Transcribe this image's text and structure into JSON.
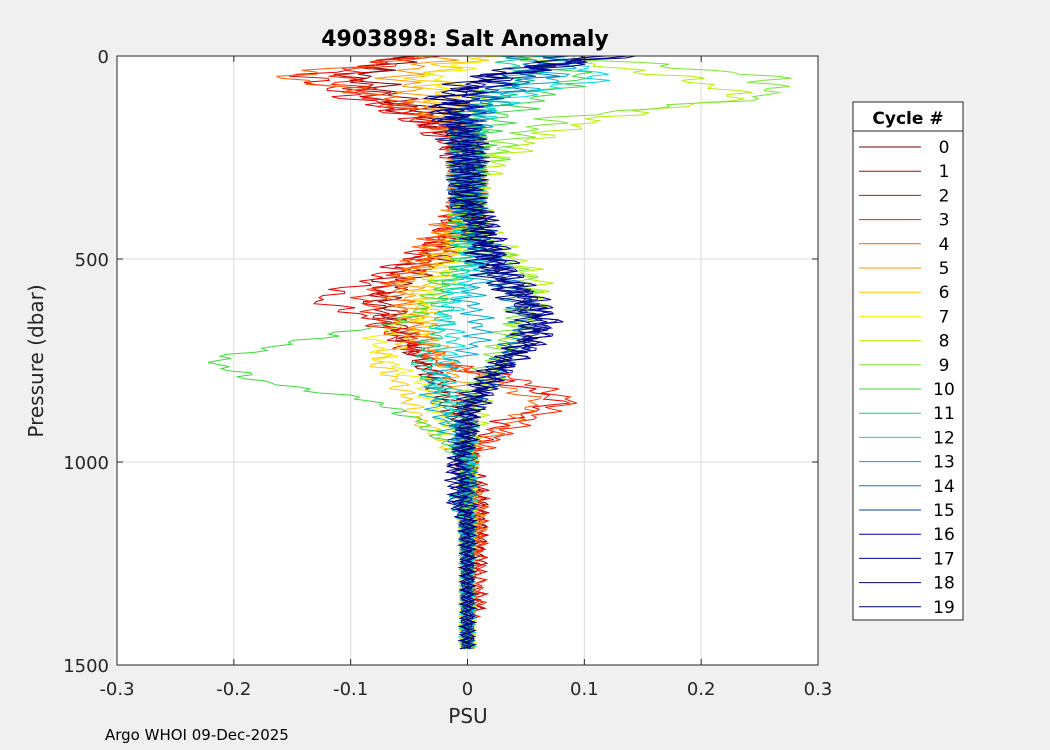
{
  "chart_data": {
    "type": "line",
    "title": "4903898: Salt Anomaly",
    "xlabel": "PSU",
    "ylabel": "Pressure (dbar)",
    "xlim": [
      -0.3,
      0.3
    ],
    "ylim": [
      0,
      1500
    ],
    "y_reversed": true,
    "grid": true,
    "xticks": [
      -0.3,
      -0.2,
      -0.1,
      0,
      0.1,
      0.2,
      0.3
    ],
    "xtick_labels": [
      "-0.3",
      "-0.2",
      "-0.1",
      "0",
      "0.1",
      "0.2",
      "0.3"
    ],
    "yticks": [
      0,
      500,
      1000,
      1500
    ],
    "ytick_labels": [
      "0",
      "500",
      "1000",
      "1500"
    ],
    "legend_title": "Cycle #",
    "legend_position": "outside-right",
    "pressure_levels": [
      0,
      50,
      100,
      150,
      200,
      250,
      300,
      350,
      400,
      450,
      500,
      550,
      600,
      650,
      700,
      750,
      800,
      850,
      900,
      950,
      1000,
      1050,
      1100,
      1150,
      1200,
      1250,
      1300,
      1350,
      1400,
      1450
    ],
    "series": [
      {
        "name": "0",
        "color": "#800000",
        "values": [
          -0.05,
          -0.09,
          -0.06,
          -0.03,
          -0.01,
          0.0,
          0.0,
          0.0,
          0.0,
          -0.01,
          -0.02,
          -0.05,
          -0.07,
          -0.06,
          -0.05,
          -0.04,
          -0.03,
          -0.02,
          -0.01,
          0.0,
          0.0,
          0.0,
          0.01,
          0.01,
          0.01,
          0.01,
          0.0,
          0.0,
          0.0,
          0.0
        ]
      },
      {
        "name": "1",
        "color": "#b40000",
        "values": [
          -0.06,
          -0.1,
          -0.08,
          -0.04,
          -0.01,
          0.0,
          0.0,
          0.0,
          -0.01,
          -0.02,
          -0.04,
          -0.07,
          -0.08,
          -0.07,
          -0.05,
          -0.04,
          -0.02,
          -0.01,
          0.0,
          0.0,
          0.0,
          0.01,
          0.01,
          0.01,
          0.01,
          0.0,
          0.0,
          0.01,
          0.0,
          0.0
        ]
      },
      {
        "name": "2",
        "color": "#e60000",
        "values": [
          -0.04,
          -0.14,
          -0.1,
          -0.05,
          -0.02,
          -0.01,
          0.0,
          0.0,
          -0.01,
          -0.02,
          -0.05,
          -0.08,
          -0.13,
          -0.08,
          -0.06,
          -0.04,
          0.03,
          0.08,
          0.03,
          0.01,
          0.0,
          0.01,
          0.01,
          0.01,
          0.01,
          0.01,
          0.01,
          0.01,
          0.0,
          0.0
        ]
      },
      {
        "name": "3",
        "color": "#ff1e00",
        "values": [
          -0.05,
          -0.11,
          -0.08,
          -0.04,
          0.0,
          0.0,
          0.0,
          0.0,
          -0.01,
          -0.02,
          -0.03,
          -0.06,
          -0.09,
          -0.07,
          -0.05,
          -0.03,
          0.05,
          0.09,
          0.05,
          0.02,
          0.0,
          0.0,
          0.01,
          0.01,
          0.01,
          0.01,
          0.01,
          0.01,
          0.0,
          0.0
        ]
      },
      {
        "name": "4",
        "color": "#ff5a00",
        "values": [
          -0.03,
          -0.16,
          -0.07,
          -0.03,
          0.0,
          0.0,
          0.0,
          0.0,
          -0.01,
          -0.03,
          -0.04,
          -0.06,
          -0.06,
          -0.05,
          -0.04,
          -0.02,
          0.02,
          0.06,
          0.04,
          0.01,
          0.0,
          0.0,
          0.01,
          0.01,
          0.01,
          0.0,
          0.0,
          0.0,
          0.0,
          0.0
        ]
      },
      {
        "name": "5",
        "color": "#ff9600",
        "values": [
          -0.02,
          -0.06,
          -0.04,
          -0.02,
          0.0,
          0.0,
          0.0,
          0.0,
          -0.01,
          -0.02,
          -0.03,
          -0.05,
          -0.05,
          -0.04,
          -0.03,
          -0.02,
          -0.01,
          0.0,
          0.0,
          0.0,
          0.0,
          0.0,
          0.0,
          0.01,
          0.0,
          0.0,
          0.0,
          0.0,
          0.0,
          0.0
        ]
      },
      {
        "name": "6",
        "color": "#ffc800",
        "values": [
          0.01,
          -0.04,
          -0.02,
          -0.01,
          0.0,
          0.0,
          0.0,
          0.0,
          0.0,
          -0.01,
          -0.02,
          -0.03,
          -0.04,
          -0.03,
          -0.05,
          -0.08,
          -0.06,
          -0.05,
          -0.04,
          -0.02,
          0.0,
          0.0,
          0.0,
          0.0,
          0.0,
          0.0,
          0.0,
          0.0,
          0.0,
          0.0
        ]
      },
      {
        "name": "7",
        "color": "#f0f000",
        "values": [
          0.02,
          -0.03,
          0.01,
          0.0,
          0.0,
          0.0,
          0.0,
          0.0,
          0.0,
          0.0,
          -0.01,
          -0.02,
          -0.03,
          -0.05,
          -0.08,
          -0.07,
          -0.04,
          -0.03,
          -0.02,
          -0.01,
          0.0,
          0.0,
          0.0,
          0.0,
          0.0,
          0.0,
          0.0,
          0.0,
          0.0,
          0.0
        ]
      },
      {
        "name": "8",
        "color": "#b4f000",
        "values": [
          0.05,
          0.18,
          0.24,
          0.12,
          0.06,
          0.03,
          0.01,
          0.0,
          0.01,
          0.02,
          0.04,
          0.06,
          0.06,
          0.05,
          0.04,
          0.03,
          0.02,
          0.01,
          0.01,
          0.0,
          0.0,
          0.0,
          0.0,
          0.0,
          0.0,
          0.0,
          0.0,
          0.0,
          0.0,
          0.0
        ]
      },
      {
        "name": "9",
        "color": "#78e632",
        "values": [
          0.08,
          0.26,
          0.26,
          0.08,
          0.04,
          0.02,
          0.0,
          0.0,
          0.0,
          0.01,
          0.03,
          0.05,
          0.05,
          0.04,
          0.03,
          0.02,
          0.01,
          0.0,
          0.0,
          0.0,
          0.0,
          0.0,
          0.0,
          0.0,
          0.0,
          0.0,
          0.0,
          0.0,
          0.0,
          0.0
        ]
      },
      {
        "name": "10",
        "color": "#3cdc3c",
        "values": [
          0.04,
          0.1,
          0.06,
          0.03,
          0.01,
          0.0,
          0.0,
          0.0,
          0.0,
          0.0,
          0.0,
          -0.02,
          -0.03,
          -0.05,
          -0.14,
          -0.22,
          -0.18,
          -0.08,
          -0.04,
          -0.02,
          0.0,
          0.0,
          0.0,
          0.0,
          0.0,
          0.0,
          0.0,
          0.0,
          0.0,
          0.0
        ]
      },
      {
        "name": "11",
        "color": "#00d28c",
        "values": [
          0.03,
          0.05,
          0.02,
          0.0,
          0.0,
          0.0,
          0.0,
          0.0,
          0.0,
          0.0,
          0.0,
          -0.01,
          -0.02,
          -0.02,
          -0.03,
          -0.04,
          -0.03,
          -0.02,
          -0.01,
          0.0,
          0.0,
          0.0,
          -0.01,
          0.0,
          0.0,
          0.0,
          0.0,
          0.0,
          0.0,
          0.0
        ]
      },
      {
        "name": "12",
        "color": "#00dcdc",
        "values": [
          0.06,
          0.12,
          0.04,
          0.01,
          0.0,
          0.0,
          0.0,
          0.0,
          0.0,
          0.0,
          0.01,
          0.0,
          -0.01,
          -0.02,
          -0.01,
          -0.02,
          -0.02,
          -0.01,
          0.0,
          0.0,
          0.0,
          0.0,
          0.0,
          0.0,
          0.0,
          0.0,
          0.0,
          0.0,
          0.0,
          0.0
        ]
      },
      {
        "name": "13",
        "color": "#00aad2",
        "values": [
          0.07,
          0.08,
          0.03,
          0.01,
          0.0,
          0.0,
          0.0,
          0.0,
          0.0,
          0.0,
          0.01,
          0.01,
          0.0,
          0.01,
          0.01,
          -0.01,
          -0.03,
          -0.03,
          -0.02,
          -0.01,
          0.0,
          0.0,
          0.0,
          0.0,
          0.0,
          0.0,
          0.0,
          0.0,
          0.0,
          0.0
        ]
      },
      {
        "name": "14",
        "color": "#0078be",
        "values": [
          0.05,
          0.06,
          0.02,
          0.0,
          0.0,
          0.0,
          0.0,
          0.0,
          0.0,
          0.01,
          0.02,
          0.03,
          0.04,
          0.05,
          0.04,
          0.03,
          0.02,
          0.0,
          -0.01,
          0.0,
          0.0,
          0.0,
          0.0,
          0.0,
          0.0,
          0.0,
          0.0,
          0.0,
          0.0,
          0.0
        ]
      },
      {
        "name": "15",
        "color": "#003cb4",
        "values": [
          0.09,
          0.04,
          0.01,
          0.0,
          -0.01,
          0.0,
          0.0,
          0.0,
          0.01,
          0.01,
          0.02,
          0.03,
          0.05,
          0.06,
          0.05,
          0.03,
          0.02,
          0.01,
          0.0,
          -0.01,
          0.0,
          0.0,
          -0.01,
          0.0,
          0.0,
          0.0,
          0.0,
          0.0,
          0.0,
          0.0
        ]
      },
      {
        "name": "16",
        "color": "#0000aa",
        "values": [
          0.11,
          0.03,
          0.0,
          -0.01,
          0.0,
          0.0,
          0.0,
          0.0,
          0.01,
          0.02,
          0.02,
          0.04,
          0.05,
          0.07,
          0.06,
          0.04,
          0.02,
          0.01,
          0.0,
          0.0,
          -0.01,
          -0.01,
          0.0,
          0.0,
          0.0,
          0.0,
          0.0,
          0.0,
          0.0,
          0.0
        ]
      },
      {
        "name": "17",
        "color": "#000096",
        "values": [
          0.12,
          0.02,
          -0.01,
          -0.01,
          0.0,
          0.0,
          0.0,
          -0.01,
          0.01,
          0.02,
          0.03,
          0.04,
          0.06,
          0.07,
          0.06,
          0.04,
          0.02,
          0.0,
          0.0,
          0.0,
          -0.01,
          0.0,
          -0.01,
          0.0,
          0.0,
          0.0,
          0.0,
          0.0,
          0.0,
          0.0
        ]
      },
      {
        "name": "18",
        "color": "#000082",
        "values": [
          0.13,
          0.03,
          -0.02,
          -0.02,
          0.0,
          0.0,
          0.0,
          0.0,
          0.01,
          0.01,
          0.02,
          0.03,
          0.05,
          0.06,
          0.05,
          0.03,
          0.02,
          0.01,
          0.0,
          0.0,
          -0.01,
          -0.01,
          -0.01,
          0.0,
          0.0,
          0.0,
          0.0,
          0.0,
          0.0,
          0.0
        ]
      },
      {
        "name": "19",
        "color": "#00006e",
        "values": [
          0.1,
          0.01,
          -0.02,
          -0.01,
          0.0,
          0.0,
          0.0,
          0.0,
          0.01,
          0.01,
          0.01,
          0.02,
          0.04,
          0.05,
          0.05,
          0.03,
          0.01,
          0.0,
          0.0,
          0.0,
          -0.01,
          0.0,
          0.0,
          0.0,
          0.0,
          0.0,
          0.0,
          0.0,
          0.0,
          0.0
        ]
      }
    ]
  },
  "footer": "Argo WHOI 09-Dec-2025"
}
